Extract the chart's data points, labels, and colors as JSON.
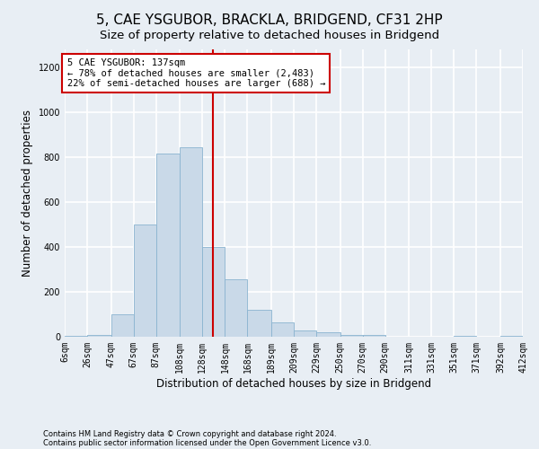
{
  "title": "5, CAE YSGUBOR, BRACKLA, BRIDGEND, CF31 2HP",
  "subtitle": "Size of property relative to detached houses in Bridgend",
  "xlabel": "Distribution of detached houses by size in Bridgend",
  "ylabel": "Number of detached properties",
  "footnote1": "Contains HM Land Registry data © Crown copyright and database right 2024.",
  "footnote2": "Contains public sector information licensed under the Open Government Licence v3.0.",
  "annotation_line1": "5 CAE YSGUBOR: 137sqm",
  "annotation_line2": "← 78% of detached houses are smaller (2,483)",
  "annotation_line3": "22% of semi-detached houses are larger (688) →",
  "property_size": 137,
  "bar_color": "#c9d9e8",
  "bar_edge_color": "#8ab4d0",
  "vline_color": "#cc0000",
  "annotation_box_color": "#ffffff",
  "annotation_box_edge": "#cc0000",
  "bin_edges": [
    6,
    26,
    47,
    67,
    87,
    108,
    128,
    148,
    168,
    189,
    209,
    229,
    250,
    270,
    290,
    311,
    331,
    351,
    371,
    392,
    412
  ],
  "bin_labels": [
    "6sqm",
    "26sqm",
    "47sqm",
    "67sqm",
    "87sqm",
    "108sqm",
    "128sqm",
    "148sqm",
    "168sqm",
    "189sqm",
    "209sqm",
    "229sqm",
    "250sqm",
    "270sqm",
    "290sqm",
    "311sqm",
    "331sqm",
    "351sqm",
    "371sqm",
    "392sqm",
    "412sqm"
  ],
  "counts": [
    5,
    10,
    100,
    500,
    815,
    845,
    400,
    255,
    120,
    65,
    30,
    20,
    10,
    10,
    0,
    0,
    0,
    5,
    0,
    5
  ],
  "ylim": [
    0,
    1280
  ],
  "yticks": [
    0,
    200,
    400,
    600,
    800,
    1000,
    1200
  ],
  "background_color": "#e8eef4",
  "grid_color": "#ffffff",
  "title_fontsize": 11,
  "axis_label_fontsize": 8.5,
  "tick_fontsize": 7,
  "annotation_fontsize": 7.5,
  "footnote_fontsize": 6
}
